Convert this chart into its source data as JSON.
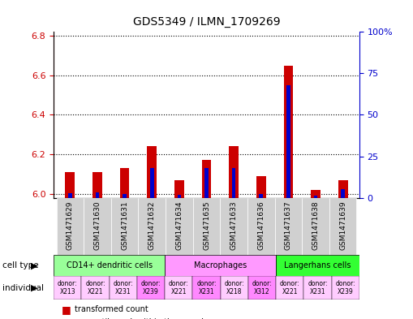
{
  "title": "GDS5349 / ILMN_1709269",
  "samples": [
    "GSM1471629",
    "GSM1471630",
    "GSM1471631",
    "GSM1471632",
    "GSM1471634",
    "GSM1471635",
    "GSM1471633",
    "GSM1471636",
    "GSM1471637",
    "GSM1471638",
    "GSM1471639"
  ],
  "red_values": [
    6.11,
    6.11,
    6.13,
    6.24,
    6.07,
    6.17,
    6.24,
    6.09,
    6.65,
    6.02,
    6.07
  ],
  "blue_values": [
    3.0,
    3.5,
    2.5,
    18.0,
    2.0,
    18.0,
    18.0,
    2.5,
    68.0,
    1.5,
    5.0
  ],
  "ylim_left": [
    5.98,
    6.82
  ],
  "ylim_right": [
    0,
    100
  ],
  "yticks_left": [
    6.0,
    6.2,
    6.4,
    6.6,
    6.8
  ],
  "yticks_right": [
    0,
    25,
    50,
    75,
    100
  ],
  "ytick_labels_right": [
    "0",
    "25",
    "50",
    "75",
    "100%"
  ],
  "cell_types": [
    {
      "label": "CD14+ dendritic cells",
      "start": 0,
      "end": 3,
      "color": "#99ff99"
    },
    {
      "label": "Macrophages",
      "start": 4,
      "end": 7,
      "color": "#ff99ff"
    },
    {
      "label": "Langerhans cells",
      "start": 8,
      "end": 10,
      "color": "#33ff33"
    }
  ],
  "individuals": [
    {
      "label": "donor:\nX213",
      "idx": 0,
      "color": "#ffccff"
    },
    {
      "label": "donor:\nX221",
      "idx": 1,
      "color": "#ffccff"
    },
    {
      "label": "donor:\nX231",
      "idx": 2,
      "color": "#ffccff"
    },
    {
      "label": "donor:\nX239",
      "idx": 3,
      "color": "#ff99ff"
    },
    {
      "label": "donor:\nX221",
      "idx": 4,
      "color": "#ffccff"
    },
    {
      "label": "donor:\nX231",
      "idx": 5,
      "color": "#ff99ff"
    },
    {
      "label": "donor:\nX218",
      "idx": 6,
      "color": "#ffccff"
    },
    {
      "label": "donor:\nX312",
      "idx": 7,
      "color": "#ff99ff"
    },
    {
      "label": "donor:\nX221",
      "idx": 8,
      "color": "#ffccff"
    },
    {
      "label": "donor:\nX231",
      "idx": 9,
      "color": "#ffccff"
    },
    {
      "label": "donor:\nX239",
      "idx": 10,
      "color": "#ffccff"
    }
  ],
  "bar_width": 0.35,
  "red_color": "#cc0000",
  "blue_color": "#0000cc",
  "bg_color": "#ffffff",
  "grid_color": "#000000",
  "axis_left_color": "#cc0000",
  "axis_right_color": "#0000cc"
}
